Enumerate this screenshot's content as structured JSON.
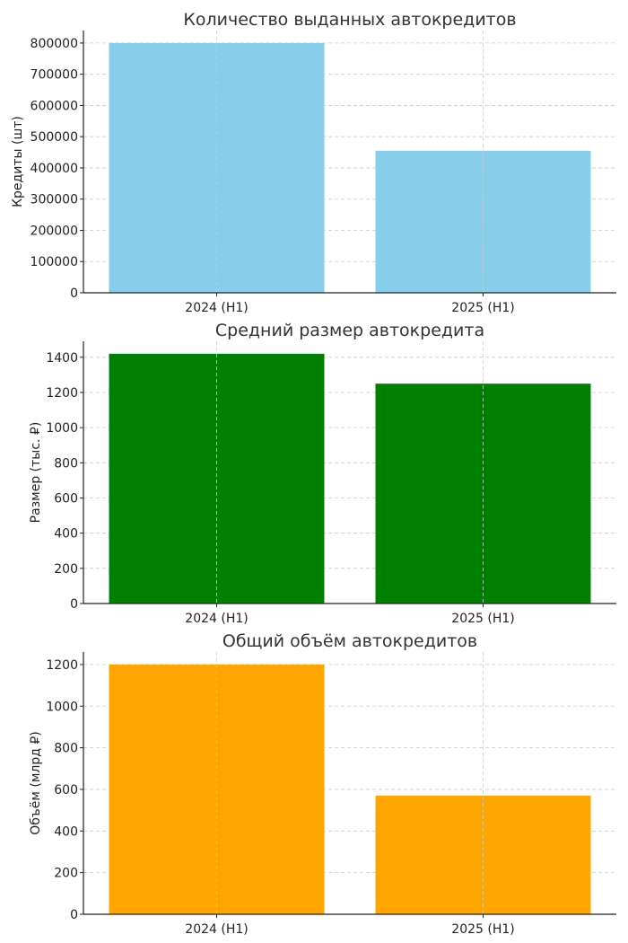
{
  "chart_data": [
    {
      "type": "bar",
      "title": "Количество выданных автокредитов",
      "xlabel": "",
      "ylabel": "Кредиты (шт)",
      "categories": [
        "2024 (H1)",
        "2025 (H1)"
      ],
      "values": [
        800000,
        455000
      ],
      "ylim": [
        0,
        840000
      ],
      "yticks": [
        0,
        100000,
        200000,
        300000,
        400000,
        500000,
        600000,
        700000,
        800000
      ],
      "color": "#87CEEB",
      "grid": true
    },
    {
      "type": "bar",
      "title": "Средний размер автокредита",
      "xlabel": "",
      "ylabel": "Размер (тыс. ₽)",
      "categories": [
        "2024 (H1)",
        "2025 (H1)"
      ],
      "values": [
        1420,
        1250
      ],
      "ylim": [
        0,
        1491
      ],
      "yticks": [
        0,
        200,
        400,
        600,
        800,
        1000,
        1200,
        1400
      ],
      "color": "#008000",
      "grid": true
    },
    {
      "type": "bar",
      "title": "Общий объём автокредитов",
      "xlabel": "",
      "ylabel": "Объём (млрд ₽)",
      "categories": [
        "2024 (H1)",
        "2025 (H1)"
      ],
      "values": [
        1200,
        570
      ],
      "ylim": [
        0,
        1260
      ],
      "yticks": [
        0,
        200,
        400,
        600,
        800,
        1000,
        1200
      ],
      "color": "#FFA500",
      "grid": true
    }
  ]
}
